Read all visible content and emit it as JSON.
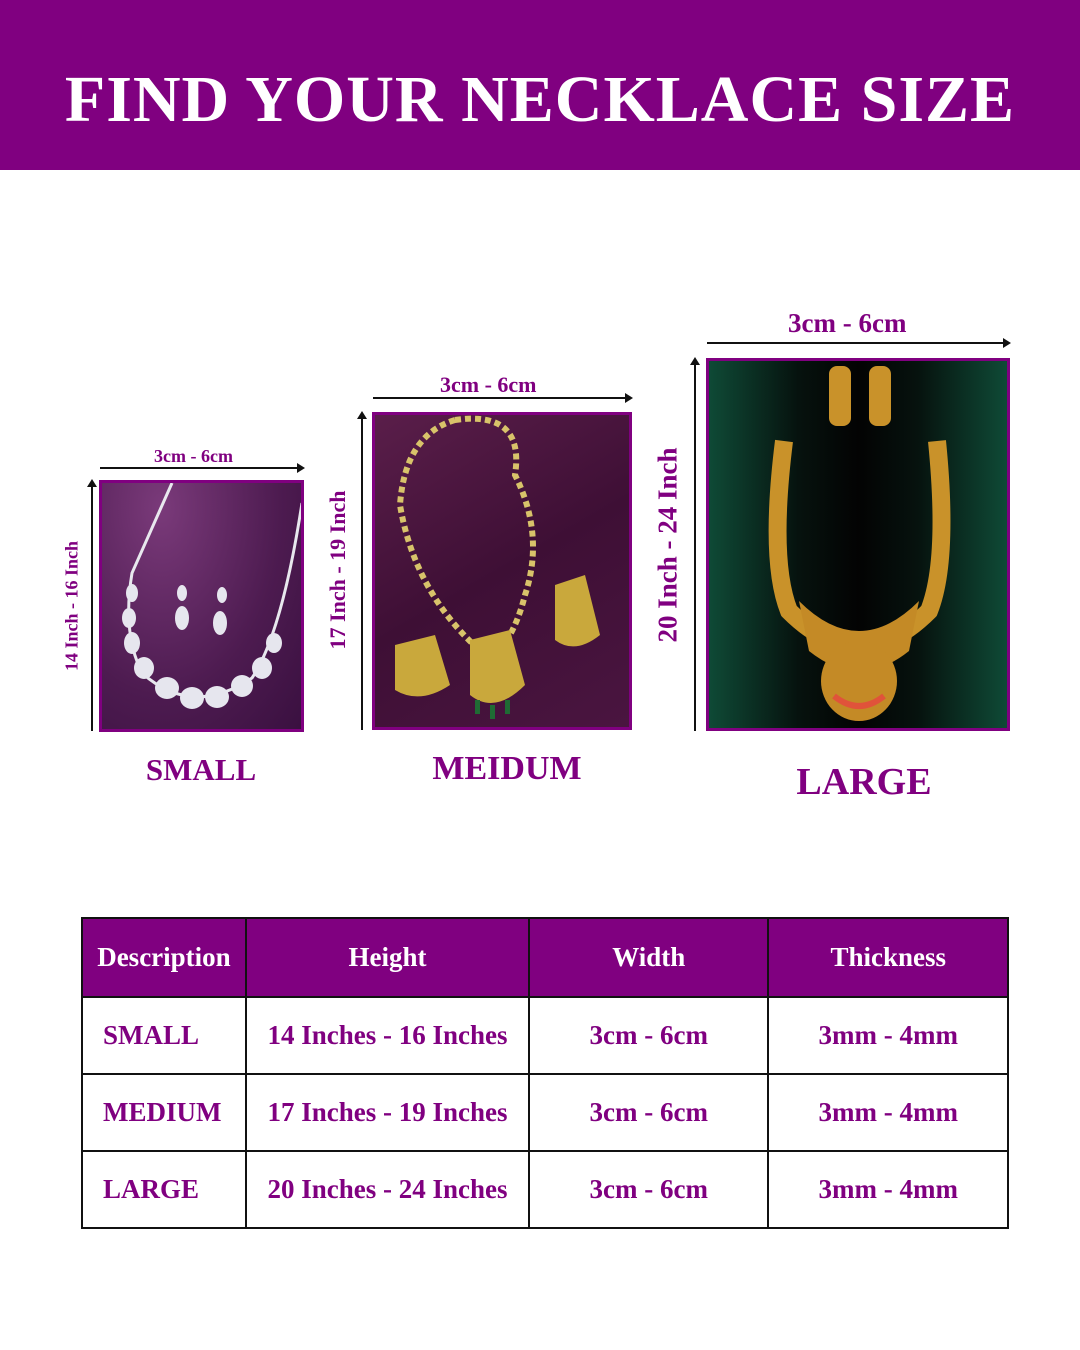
{
  "header": {
    "title": "FIND YOUR NECKLACE SIZE",
    "background": "#800080"
  },
  "sizes": [
    {
      "name": "SMALL",
      "width_label": "3cm - 6cm",
      "height_label": "14 Inch - 16 Inch",
      "image": "silver diamond necklace with earrings on purple cloth"
    },
    {
      "name": "MEIDUM",
      "width_label": "3cm - 6cm",
      "height_label": "17 Inch - 19 Inch",
      "image": "gold necklace with pendant and earrings on purple cloth"
    },
    {
      "name": "LARGE",
      "width_label": "3cm - 6cm",
      "height_label": "20 Inch - 24 Inch",
      "image": "gold temple haram with earrings on black bust"
    }
  ],
  "table": {
    "headers": [
      "Description",
      "Height",
      "Width",
      "Thickness"
    ],
    "rows": [
      [
        "SMALL",
        "14 Inches - 16 Inches",
        "3cm - 6cm",
        "3mm - 4mm"
      ],
      [
        "MEDIUM",
        "17 Inches - 19 Inches",
        "3cm - 6cm",
        "3mm - 4mm"
      ],
      [
        "LARGE",
        "20 Inches - 24 Inches",
        "3cm - 6cm",
        "3mm - 4mm"
      ]
    ]
  },
  "colors": {
    "accent": "#800080",
    "text_dark": "#111111"
  }
}
